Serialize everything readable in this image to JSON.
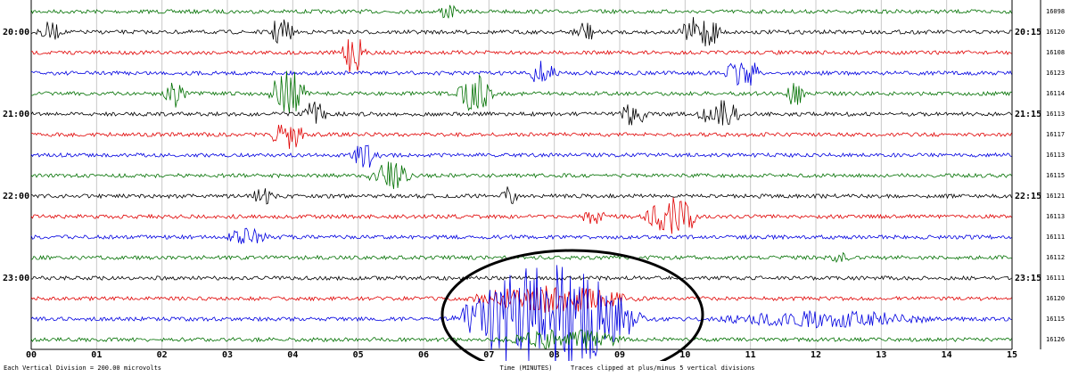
{
  "left_labels": [
    "20:00",
    "21:00",
    "22:00",
    "23:00"
  ],
  "right_labels": [
    "20:15",
    "21:15",
    "22:15",
    "23:15"
  ],
  "trace_counts": [
    "16098",
    "16120",
    "16108",
    "16123",
    "16114",
    "16113",
    "16117",
    "16113",
    "16115",
    "16121",
    "16113",
    "16111",
    "16112",
    "16111",
    "16120",
    "16115",
    "16126"
  ],
  "x_labels": [
    "00",
    "01",
    "02",
    "03",
    "04",
    "05",
    "06",
    "07",
    "08",
    "09",
    "10",
    "11",
    "12",
    "13",
    "14",
    "15"
  ],
  "footer": {
    "scale": "Each Vertical Division =  200.00 microvolts",
    "axis": "Time (MINUTES)",
    "clip": "Traces clipped at plus/minus 5 vertical divisions"
  }
}
